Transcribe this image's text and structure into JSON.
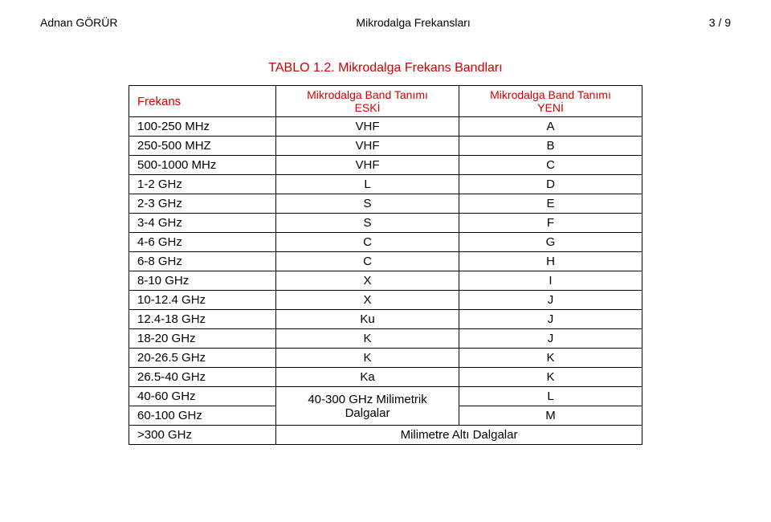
{
  "header": {
    "author": "Adnan GÖRÜR",
    "title": "Mikrodalga Frekansları",
    "page": "3 / 9"
  },
  "caption": "TABLO 1.2. Mikrodalga Frekans Bandları",
  "columns": {
    "frekans": "Frekans",
    "eski_top": "Mikrodalga Band Tanımı",
    "eski_bottom": "ESKİ",
    "yeni_top": "Mikrodalga Band Tanımı",
    "yeni_bottom": "YENİ"
  },
  "rows": [
    {
      "f": "100-250 MHz",
      "e": "VHF",
      "y": "A"
    },
    {
      "f": "250-500 MHZ",
      "e": "VHF",
      "y": "B"
    },
    {
      "f": "500-1000 MHz",
      "e": "VHF",
      "y": "C"
    },
    {
      "f": "1-2 GHz",
      "e": "L",
      "y": "D"
    },
    {
      "f": "2-3 GHz",
      "e": "S",
      "y": "E"
    },
    {
      "f": "3-4 GHz",
      "e": "S",
      "y": "F"
    },
    {
      "f": "4-6 GHz",
      "e": "C",
      "y": "G"
    },
    {
      "f": "6-8 GHz",
      "e": "C",
      "y": "H"
    },
    {
      "f": "8-10 GHz",
      "e": "X",
      "y": "I"
    },
    {
      "f": "10-12.4 GHz",
      "e": "X",
      "y": "J"
    },
    {
      "f": "12.4-18 GHz",
      "e": "Ku",
      "y": "J"
    },
    {
      "f": "18-20 GHz",
      "e": "K",
      "y": "J"
    },
    {
      "f": "20-26.5 GHz",
      "e": "K",
      "y": "K"
    },
    {
      "f": "26.5-40 GHz",
      "e": "Ka",
      "y": "K"
    }
  ],
  "merged": {
    "r40_60_f": "40-60 GHz",
    "r60_100_f": "60-100 GHz",
    "milimetrik_top": "40-300 GHz Milimetrik",
    "milimetrik_bottom": "Dalgalar",
    "r40_60_y": "L",
    "r60_100_y": "M",
    "r300_f": ">300 GHz",
    "r300_e": "Milimetre Altı Dalgalar"
  }
}
